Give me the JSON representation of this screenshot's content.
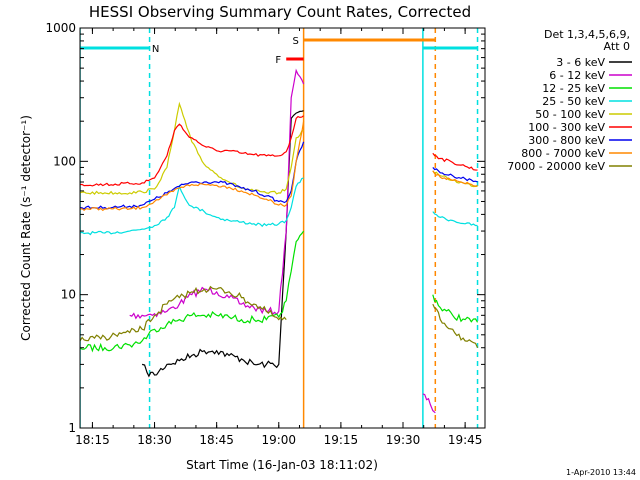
{
  "chart_data": {
    "type": "line",
    "title": "HESSI Observing Summary Count Rates, Corrected",
    "xlabel": "Start Time (16-Jan-03 18:11:02)",
    "ylabel": "Corrected Count Rate (s⁻¹ detector⁻¹)",
    "yscale": "log",
    "ylim": [
      1,
      1000
    ],
    "xlim_minutes": [
      18.2,
      19.83
    ],
    "x_ticks": [
      {
        "label": "18:15",
        "value": 18.25
      },
      {
        "label": "18:30",
        "value": 18.5
      },
      {
        "label": "18:45",
        "value": 18.75
      },
      {
        "label": "19:00",
        "value": 19.0
      },
      {
        "label": "19:15",
        "value": 19.25
      },
      {
        "label": "19:30",
        "value": 19.5
      },
      {
        "label": "19:45",
        "value": 19.75
      }
    ],
    "y_ticks": [
      {
        "label": "1",
        "value": 1
      },
      {
        "label": "10",
        "value": 10
      },
      {
        "label": "100",
        "value": 100
      },
      {
        "label": "1000",
        "value": 1000
      }
    ],
    "legend_header": [
      "Det 1,3,4,5,6,9,",
      "Att 0"
    ],
    "legend_position": "right",
    "series": [
      {
        "name": "3 - 6 keV",
        "color": "#000000",
        "x": [
          18.45,
          18.47,
          18.5,
          18.55,
          18.6,
          18.65,
          18.7,
          18.75,
          18.8,
          18.85,
          18.9,
          18.95,
          19.0,
          19.03,
          19.05,
          19.07,
          19.1
        ],
        "y": [
          3.0,
          2.6,
          2.5,
          3.0,
          3.2,
          3.5,
          3.8,
          3.8,
          3.5,
          3.3,
          3.0,
          3.0,
          3.0,
          30,
          210,
          230,
          240
        ]
      },
      {
        "name": "6 - 12 keV",
        "color": "#cc00cc",
        "x": [
          18.4,
          18.45,
          18.5,
          18.55,
          18.6,
          18.65,
          18.7,
          18.75,
          18.8,
          18.85,
          18.9,
          18.95,
          19.0,
          19.03,
          19.05,
          19.07,
          19.1,
          19.58,
          19.61,
          19.63
        ],
        "y": [
          7.0,
          7.0,
          7.2,
          7.5,
          8.5,
          10,
          11,
          10.5,
          9.5,
          8.5,
          8.0,
          7.5,
          7.5,
          30,
          300,
          480,
          380,
          1.8,
          1.5,
          1.3
        ]
      },
      {
        "name": "12 - 25 keV",
        "color": "#00e000",
        "x": [
          18.2,
          18.3,
          18.4,
          18.45,
          18.5,
          18.55,
          18.6,
          18.65,
          18.7,
          18.75,
          18.8,
          18.85,
          18.9,
          18.95,
          19.0,
          19.03,
          19.05,
          19.07,
          19.1,
          19.62,
          19.65,
          19.7,
          19.75,
          19.8
        ],
        "y": [
          4.0,
          4.0,
          4.2,
          4.5,
          5.5,
          6.0,
          6.5,
          7.0,
          7.0,
          7.0,
          6.8,
          6.5,
          6.5,
          6.5,
          6.8,
          9,
          15,
          25,
          30,
          10,
          8,
          7,
          6.5,
          6.2
        ]
      },
      {
        "name": "25 - 50 keV",
        "color": "#00e0e0",
        "x": [
          18.2,
          18.3,
          18.4,
          18.45,
          18.5,
          18.55,
          18.58,
          18.6,
          18.63,
          18.65,
          18.7,
          18.75,
          18.8,
          18.85,
          18.9,
          18.95,
          19.0,
          19.03,
          19.05,
          19.07,
          19.1,
          19.62,
          19.65,
          19.7,
          19.75,
          19.8
        ],
        "y": [
          29,
          29,
          30,
          31,
          33,
          38,
          45,
          65,
          50,
          46,
          42,
          38,
          36,
          35,
          34,
          33,
          34,
          36,
          45,
          65,
          75,
          42,
          38,
          36,
          34,
          33
        ]
      },
      {
        "name": "50 - 100 keV",
        "color": "#cccc00",
        "x": [
          18.2,
          18.3,
          18.4,
          18.45,
          18.5,
          18.55,
          18.58,
          18.6,
          18.63,
          18.65,
          18.7,
          18.75,
          18.8,
          18.85,
          18.9,
          18.95,
          19.0,
          19.03,
          19.05,
          19.07,
          19.1,
          19.62,
          19.65,
          19.7,
          19.75,
          19.8
        ],
        "y": [
          58,
          58,
          58,
          59,
          62,
          90,
          170,
          270,
          180,
          140,
          95,
          80,
          70,
          63,
          60,
          58,
          58,
          62,
          90,
          150,
          170,
          85,
          78,
          72,
          68,
          65
        ]
      },
      {
        "name": "100 - 300 keV",
        "color": "#ff0000",
        "x": [
          18.2,
          18.3,
          18.4,
          18.45,
          18.5,
          18.55,
          18.58,
          18.6,
          18.63,
          18.65,
          18.7,
          18.75,
          18.8,
          18.85,
          18.9,
          18.95,
          19.0,
          19.03,
          19.05,
          19.07,
          19.1,
          19.62,
          19.65,
          19.7,
          19.75,
          19.8
        ],
        "y": [
          67,
          67,
          68,
          69,
          75,
          110,
          170,
          190,
          160,
          150,
          130,
          120,
          120,
          115,
          112,
          110,
          110,
          118,
          150,
          210,
          220,
          115,
          105,
          98,
          92,
          86
        ]
      },
      {
        "name": "300 - 800 keV",
        "color": "#0000ee",
        "x": [
          18.2,
          18.3,
          18.4,
          18.45,
          18.5,
          18.55,
          18.6,
          18.65,
          18.7,
          18.75,
          18.8,
          18.85,
          18.9,
          18.95,
          19.0,
          19.03,
          19.05,
          19.07,
          19.1,
          19.62,
          19.65,
          19.7,
          19.75,
          19.8
        ],
        "y": [
          45,
          45,
          46,
          47,
          52,
          58,
          65,
          70,
          70,
          70,
          68,
          63,
          60,
          55,
          50,
          50,
          60,
          100,
          140,
          90,
          82,
          78,
          74,
          70
        ]
      },
      {
        "name": "800 - 7000 keV",
        "color": "#ff8800",
        "x": [
          18.2,
          18.3,
          18.4,
          18.45,
          18.5,
          18.55,
          18.6,
          18.65,
          18.7,
          18.75,
          18.8,
          18.85,
          18.9,
          18.95,
          19.0,
          19.03,
          19.05,
          19.07,
          19.1,
          19.62,
          19.65,
          19.7,
          19.75,
          19.8
        ],
        "y": [
          44,
          44,
          44,
          45,
          50,
          56,
          63,
          67,
          67,
          66,
          64,
          60,
          56,
          52,
          47,
          47,
          55,
          100,
          200,
          85,
          76,
          72,
          68,
          66
        ]
      },
      {
        "name": "7000 - 20000 keV",
        "color": "#808000",
        "x": [
          18.2,
          18.3,
          18.4,
          18.45,
          18.5,
          18.55,
          18.6,
          18.65,
          18.7,
          18.75,
          18.8,
          18.85,
          18.9,
          18.95,
          19.0,
          19.03,
          19.62,
          19.65,
          19.7,
          19.75,
          19.8
        ],
        "y": [
          4.5,
          4.8,
          5.2,
          5.5,
          7.0,
          8.5,
          9.5,
          10.5,
          11,
          11,
          10.5,
          9.5,
          8.5,
          7.5,
          6.5,
          6.5,
          8.5,
          6.5,
          5.5,
          4.5,
          4.0
        ]
      }
    ],
    "attenuator_bars": [
      {
        "label": "N",
        "color": "#00e0e0",
        "x_start": 18.2,
        "x_end": 18.48
      },
      {
        "label": "",
        "color": "#00e0e0",
        "x_start": 19.58,
        "x_end": 19.8
      },
      {
        "label": "F",
        "color": "#ff0000",
        "x_start": 19.03,
        "x_end": 19.1
      },
      {
        "label": "S",
        "color": "#ff8800",
        "x_start": 19.1,
        "x_end": 19.63
      }
    ],
    "vertical_markers": [
      {
        "x": 18.2,
        "color": "#00e0e0",
        "style": "solid"
      },
      {
        "x": 18.48,
        "color": "#00e0e0",
        "style": "dashed"
      },
      {
        "x": 19.1,
        "color": "#ff8800",
        "style": "solid"
      },
      {
        "x": 19.58,
        "color": "#00e0e0",
        "style": "solid"
      },
      {
        "x": 19.63,
        "color": "#ff8800",
        "style": "dashed"
      },
      {
        "x": 19.8,
        "color": "#00e0e0",
        "style": "dashed"
      }
    ]
  },
  "footer": {
    "timestamp": "1-Apr-2010 13:44"
  }
}
